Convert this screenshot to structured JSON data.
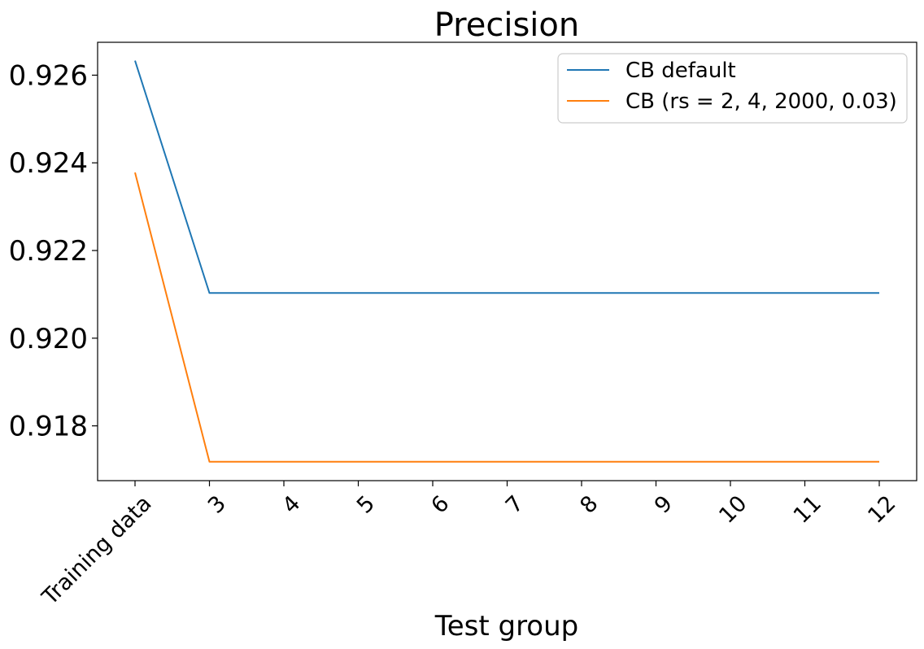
{
  "chart_data": {
    "type": "line",
    "title": "Precision",
    "xlabel": "Test group",
    "ylabel": "",
    "categories": [
      "Training data",
      "3",
      "4",
      "5",
      "6",
      "7",
      "8",
      "9",
      "10",
      "11",
      "12"
    ],
    "yticks": [
      "0.918",
      "0.920",
      "0.922",
      "0.924",
      "0.926"
    ],
    "ylim": [
      0.91675,
      0.92675
    ],
    "grid": false,
    "legend_position": "top-right",
    "series": [
      {
        "name": "CB default",
        "color": "#1f77b4",
        "values": [
          0.92633,
          0.92103,
          0.92103,
          0.92103,
          0.92103,
          0.92103,
          0.92103,
          0.92103,
          0.92103,
          0.92103,
          0.92103
        ]
      },
      {
        "name": "CB (rs = 2, 4, 2000, 0.03)",
        "color": "#ff7f0e",
        "values": [
          0.92378,
          0.91718,
          0.91718,
          0.91718,
          0.91718,
          0.91718,
          0.91718,
          0.91718,
          0.91718,
          0.91718,
          0.91718
        ]
      }
    ]
  }
}
